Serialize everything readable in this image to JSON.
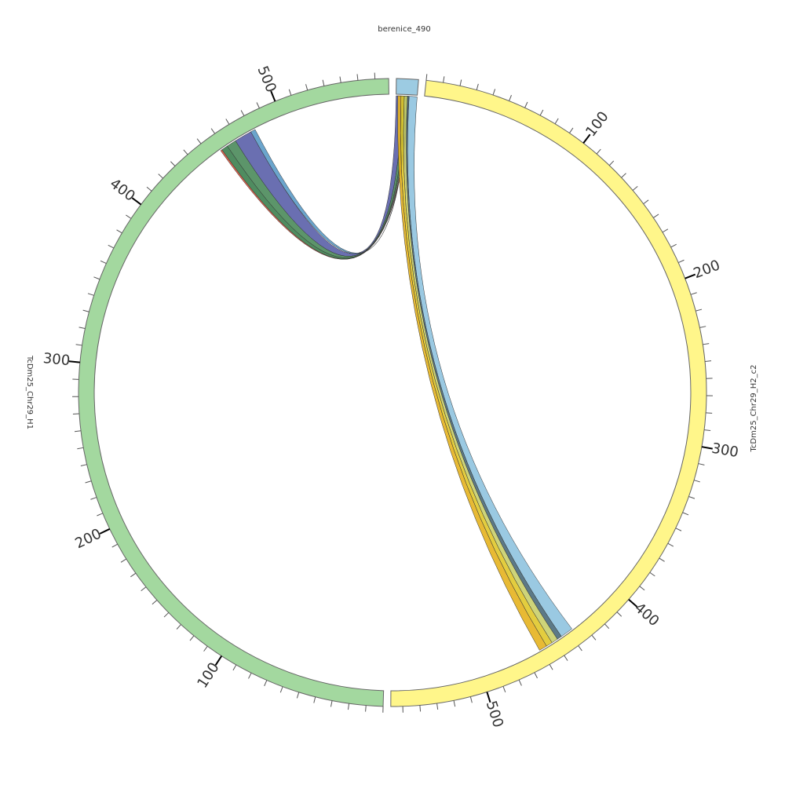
{
  "chart_data": {
    "type": "chord",
    "segments": [
      {
        "name": "berenice_490",
        "length": 13,
        "color": "#9ccbe2"
      },
      {
        "name": "TcDm25_Chr29_H2_c2",
        "length": 557,
        "color": "#fff68a",
        "ticks": [
          100,
          200,
          300,
          400,
          500
        ]
      },
      {
        "name": "TcDm25_Chr29_H1",
        "length": 568,
        "color": "#a3d89f",
        "ticks": [
          100,
          200,
          300,
          400,
          500
        ]
      }
    ],
    "minor_tick_step": 10,
    "links": [
      {
        "source": 0,
        "source_range": [
          0,
          4
        ],
        "target": 2,
        "target_range": [
          468,
          479
        ],
        "color": "#5a5fa8"
      },
      {
        "source": 0,
        "source_range": [
          4,
          6
        ],
        "target": 2,
        "target_range": [
          462,
          468
        ],
        "color": "#4a8a5a"
      },
      {
        "source": 0,
        "source_range": [
          6,
          7
        ],
        "target": 2,
        "target_range": [
          458,
          462
        ],
        "color": "#3c7f4f"
      },
      {
        "source": 0,
        "source_range": [
          7,
          7.5
        ],
        "target": 2,
        "target_range": [
          479,
          482
        ],
        "color": "#5b9bc8"
      },
      {
        "source": 0,
        "source_range": [
          7.5,
          8
        ],
        "target": 2,
        "target_range": [
          457,
          458
        ],
        "color": "#d9533c"
      },
      {
        "source": 0,
        "source_range": [
          8,
          13
        ],
        "target": 1,
        "target_range": [
          437,
          445
        ],
        "color": "#8fc3df"
      },
      {
        "source": 0,
        "source_range": [
          7,
          8
        ],
        "target": 1,
        "target_range": [
          445,
          448
        ],
        "color": "#4a6a7a"
      },
      {
        "source": 0,
        "source_range": [
          5,
          7
        ],
        "target": 1,
        "target_range": [
          448,
          452
        ],
        "color": "#c9cf6a"
      },
      {
        "source": 0,
        "source_range": [
          3,
          5
        ],
        "target": 1,
        "target_range": [
          452,
          456
        ],
        "color": "#e0c82a"
      },
      {
        "source": 0,
        "source_range": [
          1,
          3
        ],
        "target": 1,
        "target_range": [
          456,
          461
        ],
        "color": "#e6b21e"
      }
    ]
  }
}
